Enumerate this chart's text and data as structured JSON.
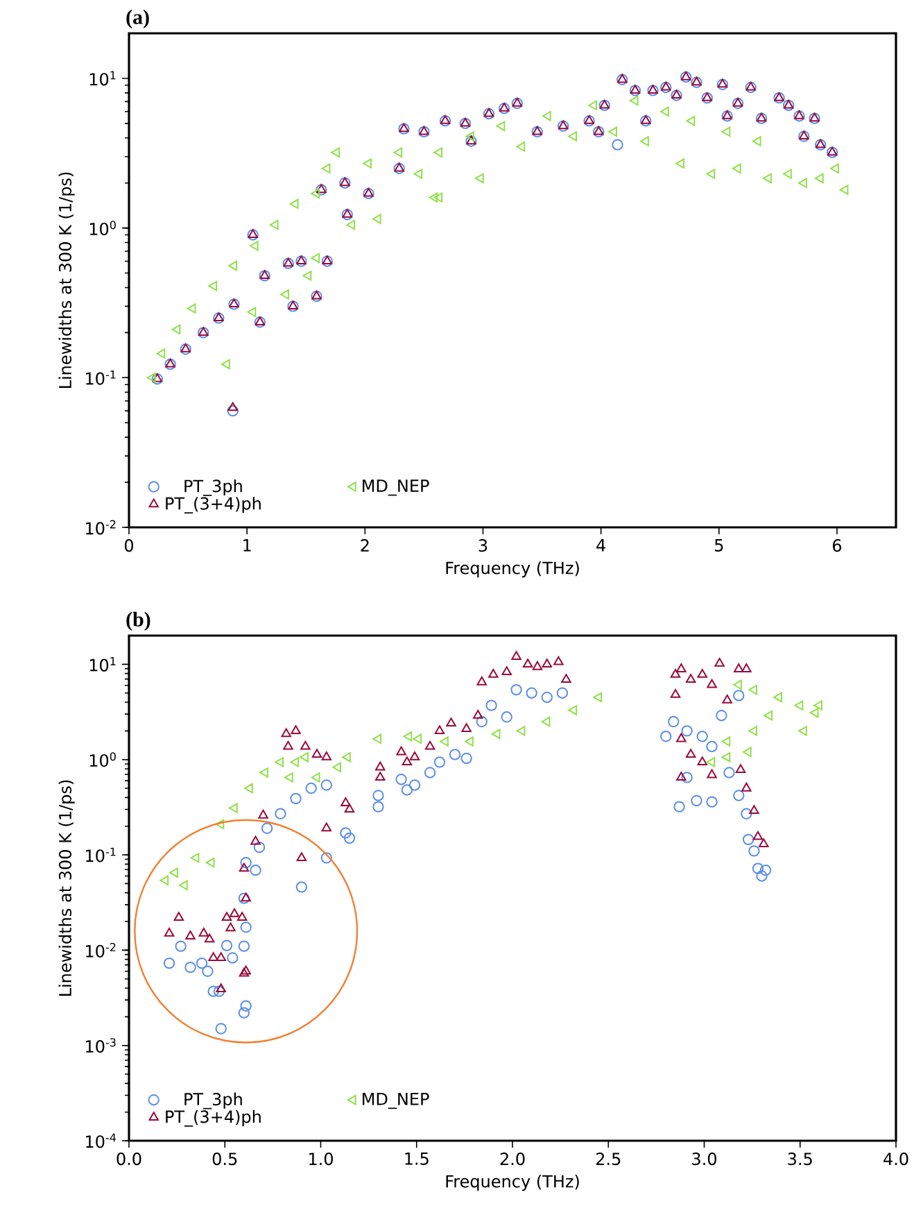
{
  "chart_data": [
    {
      "type": "scatter",
      "title": "(a)",
      "xlabel": "Frequency (THz)",
      "ylabel": "Linewidths at 300 K (1/ps)",
      "log": "y",
      "legend": "bottom left",
      "grid": false,
      "xlim": [
        0,
        6.5
      ],
      "ylim": [
        0.01,
        20
      ],
      "xticks": [
        0,
        1,
        2,
        3,
        4,
        5,
        6
      ],
      "yticks": [
        {
          "value": 0.01,
          "label": "10$^{-2}$"
        },
        {
          "value": 0.1,
          "label": "10$^{-1}$"
        },
        {
          "value": 1,
          "label": "10$^{0}$"
        },
        {
          "value": 10,
          "label": "10$^{1}$"
        }
      ],
      "series": [
        {
          "name": "PT_3ph",
          "color": "#5b8ee6",
          "marker": "circle",
          "x": [
            0.24,
            0.35,
            0.48,
            0.63,
            0.76,
            0.89,
            0.88,
            1.11,
            1.05,
            1.15,
            1.35,
            1.39,
            1.46,
            1.59,
            1.68,
            1.63,
            1.83,
            1.85,
            2.03,
            2.29,
            2.33,
            2.5,
            2.68,
            2.9,
            2.85,
            3.05,
            3.18,
            3.29,
            3.46,
            3.68,
            3.9,
            4.03,
            4.14,
            4.18,
            4.29,
            4.44,
            4.55,
            4.64,
            4.72,
            4.81,
            4.9,
            5.03,
            5.16,
            5.27,
            5.36,
            5.51,
            5.59,
            5.68,
            5.72,
            5.81,
            5.86,
            5.96,
            5.07,
            3.98,
            4.38
          ],
          "values": [
            0.098,
            0.123,
            0.155,
            0.2,
            0.25,
            0.31,
            0.06,
            0.235,
            0.9,
            0.48,
            0.58,
            0.3,
            0.6,
            0.35,
            0.6,
            1.8,
            2.0,
            1.23,
            1.7,
            2.5,
            4.6,
            4.4,
            5.2,
            3.8,
            5.0,
            5.8,
            6.3,
            6.8,
            4.4,
            4.8,
            5.2,
            6.6,
            3.6,
            9.8,
            8.3,
            8.3,
            8.7,
            7.7,
            10.2,
            9.4,
            7.4,
            9.1,
            6.8,
            8.7,
            5.4,
            7.4,
            6.6,
            5.6,
            4.1,
            5.4,
            3.6,
            3.2,
            5.6,
            4.4,
            5.2
          ]
        },
        {
          "name": "PT_(3+4)ph",
          "color": "#990a3c",
          "marker": "triangle",
          "x": [
            0.24,
            0.35,
            0.48,
            0.63,
            0.76,
            0.89,
            0.88,
            1.11,
            1.05,
            1.15,
            1.35,
            1.39,
            1.46,
            1.59,
            1.68,
            1.63,
            1.83,
            1.85,
            2.03,
            2.29,
            2.33,
            2.5,
            2.68,
            2.9,
            2.85,
            3.05,
            3.18,
            3.29,
            3.46,
            3.68,
            3.9,
            4.03,
            4.18,
            4.29,
            4.44,
            4.55,
            4.64,
            4.72,
            4.81,
            4.9,
            5.03,
            5.16,
            5.27,
            5.36,
            5.51,
            5.59,
            5.68,
            5.72,
            5.81,
            5.86,
            5.96,
            5.07,
            3.98,
            4.38
          ],
          "values": [
            0.098,
            0.123,
            0.155,
            0.2,
            0.25,
            0.31,
            0.063,
            0.235,
            0.9,
            0.48,
            0.58,
            0.3,
            0.6,
            0.35,
            0.6,
            1.8,
            2.0,
            1.23,
            1.7,
            2.5,
            4.6,
            4.4,
            5.2,
            3.8,
            5.0,
            5.8,
            6.3,
            6.8,
            4.4,
            4.8,
            5.2,
            6.6,
            9.8,
            8.3,
            8.3,
            8.7,
            7.7,
            10.2,
            9.4,
            7.4,
            9.1,
            6.8,
            8.7,
            5.4,
            7.4,
            6.6,
            5.6,
            4.1,
            5.4,
            3.6,
            3.2,
            5.6,
            4.4,
            5.2
          ]
        },
        {
          "name": "MD_NEP",
          "color": "#90e04a",
          "marker": "triangle-left",
          "x": [
            0.2,
            0.28,
            0.41,
            0.54,
            0.72,
            0.89,
            1.07,
            1.24,
            1.41,
            1.59,
            1.76,
            1.68,
            1.89,
            2.03,
            2.11,
            2.29,
            2.46,
            2.63,
            2.63,
            2.9,
            2.98,
            3.16,
            3.33,
            3.55,
            3.77,
            3.94,
            4.11,
            4.29,
            4.38,
            4.55,
            4.68,
            4.77,
            4.94,
            5.07,
            5.16,
            5.33,
            5.42,
            5.59,
            5.72,
            5.86,
            5.99,
            6.07,
            0.83,
            1.05,
            1.33,
            1.52,
            1.59,
            2.59
          ],
          "values": [
            0.1,
            0.145,
            0.21,
            0.29,
            0.41,
            0.56,
            0.76,
            1.05,
            1.45,
            1.7,
            3.2,
            2.5,
            1.05,
            2.7,
            1.15,
            3.2,
            2.3,
            3.2,
            1.6,
            4.1,
            2.15,
            4.8,
            3.5,
            5.6,
            4.1,
            6.6,
            4.4,
            7.1,
            3.8,
            6.0,
            2.7,
            5.2,
            2.3,
            4.4,
            2.5,
            3.8,
            2.15,
            2.3,
            2.0,
            2.15,
            2.5,
            1.8,
            0.123,
            0.275,
            0.36,
            0.48,
            0.63,
            1.6
          ]
        }
      ]
    },
    {
      "type": "scatter",
      "title": "(b)",
      "xlabel": "Frequency (THz)",
      "ylabel": "Linewidths at 300 K (1/ps)",
      "log": "y",
      "legend": "bottom left",
      "grid": false,
      "xlim": [
        0,
        4
      ],
      "ylim": [
        0.0001,
        20
      ],
      "xticks": [
        {
          "value": 0,
          "label": "0.0"
        },
        {
          "value": 0.5,
          "label": "0.5"
        },
        {
          "value": 1,
          "label": "1.0"
        },
        {
          "value": 1.5,
          "label": "1.5"
        },
        {
          "value": 2,
          "label": "2.0"
        },
        {
          "value": 2.5,
          "label": "2.5"
        },
        {
          "value": 3,
          "label": "3.0"
        },
        {
          "value": 3.5,
          "label": "3.5"
        },
        {
          "value": 4,
          "label": "4.0"
        }
      ],
      "yticks": [
        {
          "value": 0.0001,
          "label": "10$^{-4}$"
        },
        {
          "value": 0.001,
          "label": "10$^{-3}$"
        },
        {
          "value": 0.01,
          "label": "10$^{-2}$"
        },
        {
          "value": 0.1,
          "label": "10$^{-1}$"
        },
        {
          "value": 1,
          "label": "10$^{0}$"
        },
        {
          "value": 10,
          "label": "10$^{1}$"
        }
      ],
      "series": [
        {
          "name": "PT_3ph",
          "color": "#5b8ee6",
          "marker": "circle",
          "x": [
            0.21,
            0.27,
            0.32,
            0.38,
            0.41,
            0.44,
            0.48,
            0.47,
            0.51,
            0.54,
            0.6,
            0.61,
            0.6,
            0.61,
            0.6,
            0.61,
            0.66,
            0.68,
            0.72,
            0.79,
            0.87,
            0.95,
            1.03,
            1.03,
            0.9,
            1.13,
            1.15,
            1.3,
            1.3,
            1.42,
            1.45,
            1.49,
            1.57,
            1.62,
            1.7,
            1.76,
            1.84,
            1.89,
            1.97,
            2.02,
            2.1,
            2.18,
            2.26,
            2.87,
            2.91,
            2.96,
            2.84,
            2.91,
            2.99,
            3.04,
            3.04,
            3.09,
            3.13,
            3.18,
            3.18,
            3.22,
            3.23,
            3.26,
            3.28,
            3.32,
            3.3,
            2.8
          ],
          "values": [
            0.0073,
            0.011,
            0.0066,
            0.0073,
            0.006,
            0.0037,
            0.0015,
            0.0037,
            0.0112,
            0.0083,
            0.011,
            0.0174,
            0.0022,
            0.0026,
            0.035,
            0.083,
            0.069,
            0.12,
            0.19,
            0.27,
            0.39,
            0.5,
            0.54,
            0.093,
            0.046,
            0.17,
            0.15,
            0.32,
            0.42,
            0.62,
            0.48,
            0.54,
            0.73,
            0.94,
            1.13,
            1.03,
            2.5,
            3.7,
            2.8,
            5.4,
            5.0,
            4.5,
            5.0,
            0.32,
            0.65,
            0.37,
            2.5,
            2.0,
            1.75,
            0.36,
            1.37,
            2.9,
            0.73,
            4.7,
            0.42,
            0.27,
            0.145,
            0.11,
            0.072,
            0.069,
            0.06,
            1.75
          ]
        },
        {
          "name": "PT_(3+4)ph",
          "color": "#990a3c",
          "marker": "triangle",
          "x": [
            0.21,
            0.26,
            0.32,
            0.39,
            0.42,
            0.44,
            0.48,
            0.48,
            0.51,
            0.53,
            0.55,
            0.59,
            0.61,
            0.6,
            0.61,
            0.6,
            0.66,
            0.7,
            0.9,
            1.03,
            1.13,
            1.15,
            0.82,
            0.87,
            0.83,
            0.92,
            0.98,
            1.03,
            1.31,
            1.31,
            1.42,
            1.45,
            1.49,
            1.57,
            1.62,
            1.68,
            1.76,
            1.82,
            1.84,
            1.9,
            1.97,
            2.02,
            2.08,
            2.13,
            2.18,
            2.24,
            2.28,
            2.85,
            2.88,
            2.93,
            2.99,
            3.04,
            3.08,
            3.12,
            2.85,
            2.88,
            2.88,
            2.93,
            2.99,
            3.04,
            3.18,
            3.22,
            3.19,
            3.22,
            3.26,
            3.28,
            3.31
          ],
          "values": [
            0.015,
            0.022,
            0.014,
            0.015,
            0.013,
            0.0083,
            0.0083,
            0.0039,
            0.022,
            0.017,
            0.024,
            0.022,
            0.035,
            0.0057,
            0.006,
            0.072,
            0.138,
            0.26,
            0.093,
            0.19,
            0.35,
            0.3,
            1.86,
            2.0,
            1.37,
            1.37,
            1.13,
            1.06,
            0.65,
            0.83,
            1.2,
            0.94,
            1.06,
            1.37,
            2.0,
            2.4,
            2.1,
            2.9,
            6.5,
            7.8,
            8.3,
            12.0,
            10.0,
            9.4,
            10.0,
            10.6,
            6.9,
            7.8,
            8.9,
            6.9,
            7.8,
            6.1,
            10.2,
            4.2,
            4.8,
            1.65,
            0.65,
            1.13,
            0.94,
            0.69,
            8.9,
            8.9,
            0.78,
            0.5,
            0.29,
            0.155,
            0.13
          ]
        },
        {
          "name": "MD_NEP",
          "color": "#90e04a",
          "marker": "triangle-left",
          "x": [
            0.19,
            0.24,
            0.29,
            0.35,
            0.43,
            0.48,
            0.55,
            0.63,
            0.71,
            0.79,
            0.87,
            0.92,
            0.84,
            0.98,
            1.09,
            1.14,
            1.3,
            1.46,
            1.51,
            1.65,
            1.78,
            1.92,
            2.05,
            2.18,
            2.32,
            2.45,
            3.12,
            3.12,
            3.23,
            3.26,
            3.26,
            3.18,
            3.34,
            3.39,
            3.5,
            3.58,
            3.52,
            3.6,
            3.04
          ],
          "values": [
            0.054,
            0.065,
            0.048,
            0.093,
            0.083,
            0.21,
            0.31,
            0.5,
            0.73,
            0.94,
            0.94,
            1.06,
            0.65,
            0.65,
            0.83,
            1.06,
            1.65,
            1.75,
            1.65,
            1.55,
            1.55,
            1.86,
            2.0,
            2.5,
            3.3,
            4.5,
            1.06,
            1.55,
            1.2,
            2.0,
            5.4,
            6.1,
            2.9,
            4.5,
            3.7,
            3.1,
            2.0,
            3.7,
            0.94
          ]
        }
      ]
    }
  ]
}
